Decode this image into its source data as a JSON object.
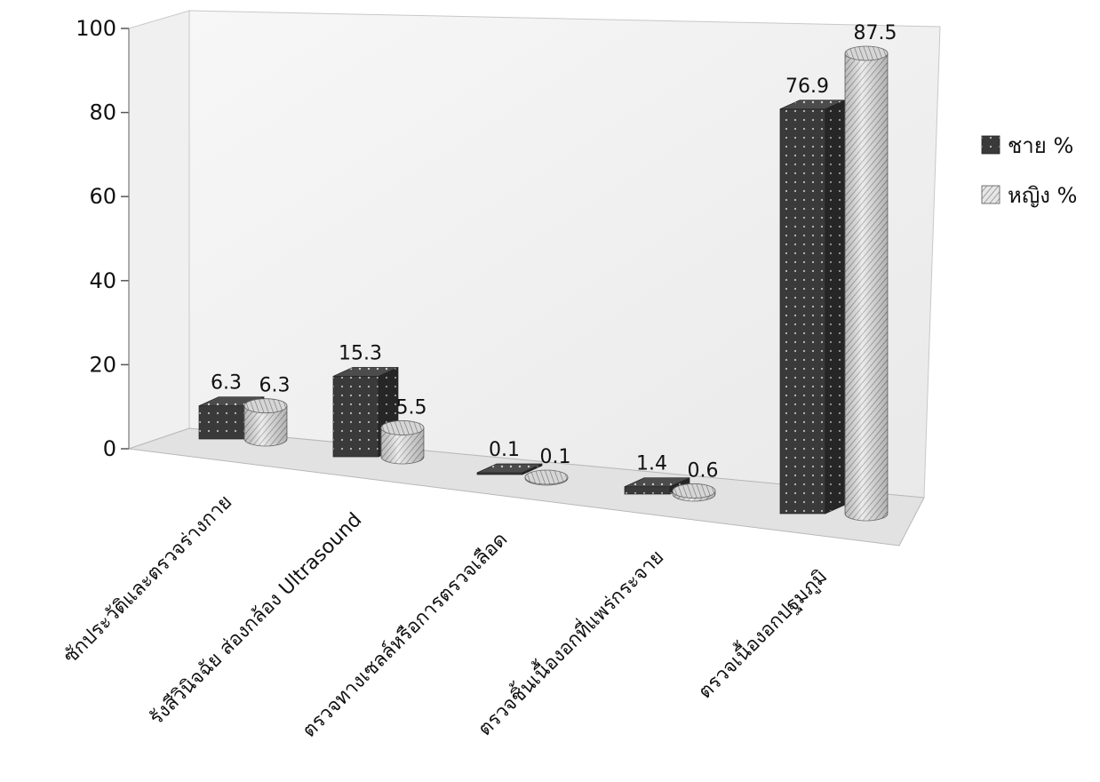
{
  "chart_data": {
    "type": "bar",
    "categories": [
      "ซักประวัติและตรวจร่างกาย",
      "รังสีวินิจฉัย ส่องกล้อง Ultrasound",
      "ตรวจทางเซลล์หรือการตรวจเลือด",
      "ตรวจชิ้นเนื้องอกที่แพร่กระจาย",
      "ตรวจเนื้องอกปฐมภูมิ"
    ],
    "series": [
      {
        "name": "ชาย %",
        "values": [
          6.3,
          15.3,
          0.1,
          1.4,
          76.9
        ],
        "shape": "box",
        "color": "#3a3a3a"
      },
      {
        "name": "หญิง %",
        "values": [
          6.3,
          5.5,
          0.1,
          0.6,
          87.5
        ],
        "shape": "cylinder",
        "color": "#d8d8d8"
      }
    ],
    "data_labels": [
      [
        "6.3",
        "15.3",
        "0.1",
        "1.4",
        "76.9"
      ],
      [
        "6.3",
        "5.5",
        "0.1",
        "0.6",
        "87.5"
      ]
    ],
    "yticks": [
      "0",
      "20",
      "40",
      "60",
      "80",
      "100"
    ],
    "ylim": [
      0,
      100
    ],
    "legend_position": "right",
    "grid": false,
    "title": "",
    "xlabel": "",
    "ylabel": ""
  }
}
